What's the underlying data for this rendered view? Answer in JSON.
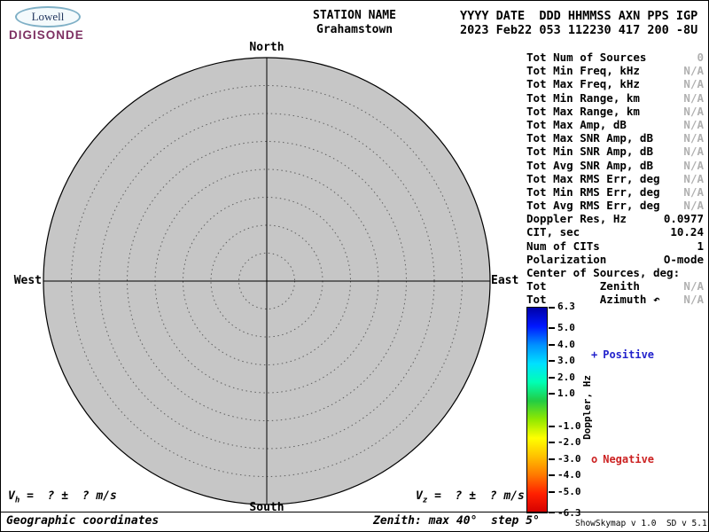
{
  "logo": {
    "brand": "Lowell",
    "product": "DIGISONDE"
  },
  "header": {
    "station_label": "STATION NAME",
    "station_value": "Grahamstown",
    "fields_label": "YYYY DATE  DDD HHMMSS AXN PPS IGP",
    "fields_value": "2023 Feb22 053 112230 417 200 -8U"
  },
  "skymap": {
    "labels": {
      "north": "North",
      "south": "South",
      "east": "East",
      "west": "West"
    },
    "zenith_max_deg": 40,
    "zenith_step_deg": 5,
    "fill_color": "#c6c6c6"
  },
  "stats": {
    "rows": [
      {
        "label": "Tot Num of Sources",
        "value": "0",
        "muted": true
      },
      {
        "label": "Tot Min Freq, kHz",
        "value": "N/A",
        "muted": true
      },
      {
        "label": "Tot Max Freq, kHz",
        "value": "N/A",
        "muted": true
      },
      {
        "label": "Tot Min Range, km",
        "value": "N/A",
        "muted": true
      },
      {
        "label": "Tot Max Range, km",
        "value": "N/A",
        "muted": true
      },
      {
        "label": "Tot Max Amp, dB",
        "value": "N/A",
        "muted": true
      },
      {
        "label": "Tot Max SNR Amp, dB",
        "value": "N/A",
        "muted": true
      },
      {
        "label": "Tot Min SNR Amp, dB",
        "value": "N/A",
        "muted": true
      },
      {
        "label": "Tot Avg SNR Amp, dB",
        "value": "N/A",
        "muted": true
      },
      {
        "label": "Tot Max RMS Err, deg",
        "value": "N/A",
        "muted": true
      },
      {
        "label": "Tot Min RMS Err, deg",
        "value": "N/A",
        "muted": true
      },
      {
        "label": "Tot Avg RMS Err, deg",
        "value": "N/A",
        "muted": true
      },
      {
        "label": "Doppler Res, Hz",
        "value": "0.0977",
        "muted": false
      },
      {
        "label": "CIT, sec",
        "value": "10.24",
        "muted": false
      },
      {
        "label": "Num of CITs",
        "value": "1",
        "muted": false
      },
      {
        "label": "Polarization",
        "value": "O-mode",
        "muted": false
      },
      {
        "label": "Center of Sources, deg:",
        "value": "",
        "muted": false
      },
      {
        "label": "Tot        Zenith",
        "value": "N/A",
        "muted": true
      },
      {
        "label": "Tot        Azimuth ↶",
        "value": "N/A",
        "muted": true
      }
    ]
  },
  "colorbar": {
    "title": "Doppler, Hz",
    "max": 6.3,
    "min": -6.3,
    "ticks": [
      "6.3",
      "5.0",
      "4.0",
      "3.0",
      "2.0",
      "1.0",
      "-1.0",
      "-2.0",
      "-3.0",
      "-4.0",
      "-5.0",
      "-6.3"
    ],
    "gradient_top_to_bottom": [
      "#0000a8",
      "#0018ff",
      "#0090ff",
      "#00e0ff",
      "#00ffb4",
      "#22cc44",
      "#90e800",
      "#ffff00",
      "#ffc000",
      "#ff7800",
      "#ff2000",
      "#d40000"
    ]
  },
  "legend": {
    "positive_marker": "+",
    "positive_label": "Positive",
    "positive_color": "#2222cc",
    "negative_marker": "o",
    "negative_label": "Negative",
    "negative_color": "#cc2222"
  },
  "footer": {
    "vh_base": "V",
    "vh_sub": "h",
    "vh_rest": " =  ? ±  ? m/s",
    "vz_base": "V",
    "vz_sub": "z",
    "vz_rest": " =  ? ±  ? m/s",
    "coords_note": "Geographic coordinates",
    "zenith_note": "Zenith: max 40°  step 5°",
    "version": "ShowSkymap v 1.0  SD v 5.1"
  },
  "chart_data": {
    "type": "scatter",
    "title": "Digisonde skymap (polar plot, zenith rings every 5 deg up to 40 deg)",
    "points": [],
    "num_sources": 0,
    "polar_rings_deg": [
      5,
      10,
      15,
      20,
      25,
      30,
      35,
      40
    ],
    "colorbar": {
      "label": "Doppler, Hz",
      "range": [
        -6.3,
        6.3
      ]
    },
    "legend_position": "right"
  }
}
